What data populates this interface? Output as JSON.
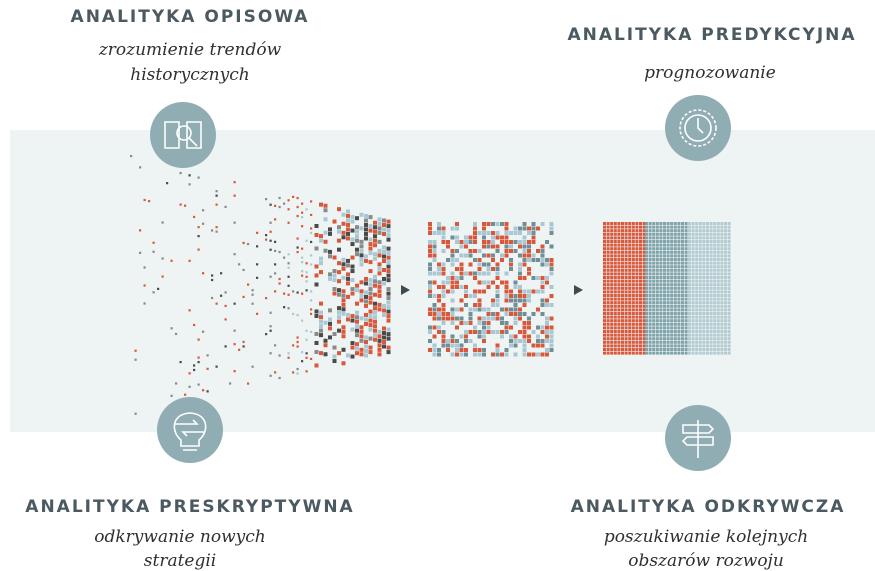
{
  "sections": [
    {
      "title": "ANALITYKA OPISOWA",
      "subtitle": [
        "zrozumienie trendów",
        "historycznych"
      ]
    },
    {
      "title": "ANALITYKA PREDYKCYJNA",
      "subtitle": [
        "prognozowanie"
      ]
    },
    {
      "title": "ANALITYKA PRESKRYPTYWNA",
      "subtitle": [
        "odkrywanie nowych",
        "strategii"
      ]
    },
    {
      "title": "ANALITYKA ODKRYWCZA",
      "subtitle": [
        "poszukiwanie kolejnych",
        "obszarów rozwoju"
      ]
    }
  ]
}
